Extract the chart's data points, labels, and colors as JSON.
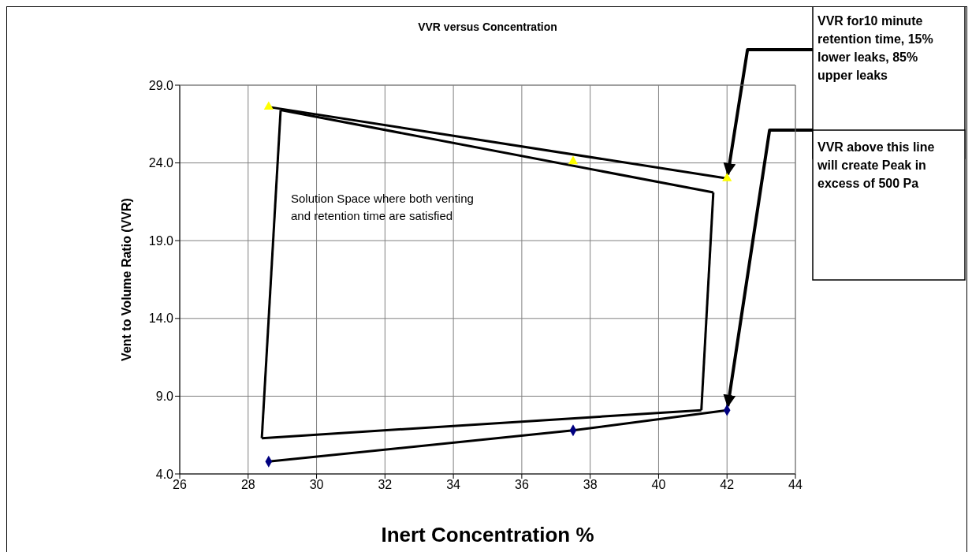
{
  "chart_data": {
    "type": "scatter",
    "title": "VVR versus Concentration",
    "xlabel": "Inert Concentration %",
    "ylabel": "Vent to Volume Ratio (VVR)",
    "xlim": [
      26,
      44
    ],
    "xticks": [
      26,
      28,
      30,
      32,
      34,
      36,
      38,
      40,
      42,
      44
    ],
    "ylim": [
      4,
      29
    ],
    "yticks": [
      {
        "value": 4,
        "label": "4.0"
      },
      {
        "value": 9,
        "label": "9.0"
      },
      {
        "value": 14,
        "label": "14.0"
      },
      {
        "value": 19,
        "label": "19.0"
      },
      {
        "value": 24,
        "label": "24.0"
      },
      {
        "value": 29,
        "label": "29.0"
      }
    ],
    "grid": true,
    "series": [
      {
        "type": "scatter",
        "color": "#ffff00",
        "marker": "triangle",
        "x": [
          28.6,
          37.5,
          42.0
        ],
        "values": [
          27.6,
          24.1,
          23.0
        ]
      },
      {
        "type": "scatter",
        "color": "#000080",
        "marker": "diamond",
        "x": [
          28.6,
          37.5,
          42.0
        ],
        "values": [
          4.8,
          6.8,
          8.1
        ]
      },
      {
        "type": "line",
        "color": "#000000",
        "marker": "none",
        "x": [
          28.6,
          42.0
        ],
        "values": [
          27.6,
          23.0
        ]
      },
      {
        "type": "line",
        "color": "#000000",
        "marker": "none",
        "x": [
          28.6,
          37.5,
          42.0
        ],
        "values": [
          4.8,
          6.8,
          8.1
        ]
      },
      {
        "type": "line",
        "color": "#000000",
        "marker": "none",
        "x": [
          28.95,
          41.6
        ],
        "values": [
          27.4,
          22.1
        ]
      },
      {
        "type": "line",
        "color": "#000000",
        "marker": "none",
        "x": [
          41.25,
          41.6
        ],
        "values": [
          8.1,
          22.1
        ]
      },
      {
        "type": "line",
        "color": "#000000",
        "marker": "none",
        "x": [
          28.4,
          41.25
        ],
        "values": [
          6.3,
          8.1
        ]
      },
      {
        "type": "line",
        "color": "#000000",
        "marker": "none",
        "x": [
          28.4,
          28.95
        ],
        "values": [
          6.3,
          27.4
        ]
      }
    ],
    "annotations": [
      "Solution Space where both venting and retention time are satisfied",
      {
        "text": "VVR for10 minute retention time, 15% lower leaks, 85% upper leaks",
        "x": 42.0,
        "y": 23.0
      },
      {
        "text": "VVR above this line will create Peak in excess of 500 Pa",
        "x": 42.0,
        "y": 8.1
      }
    ]
  }
}
